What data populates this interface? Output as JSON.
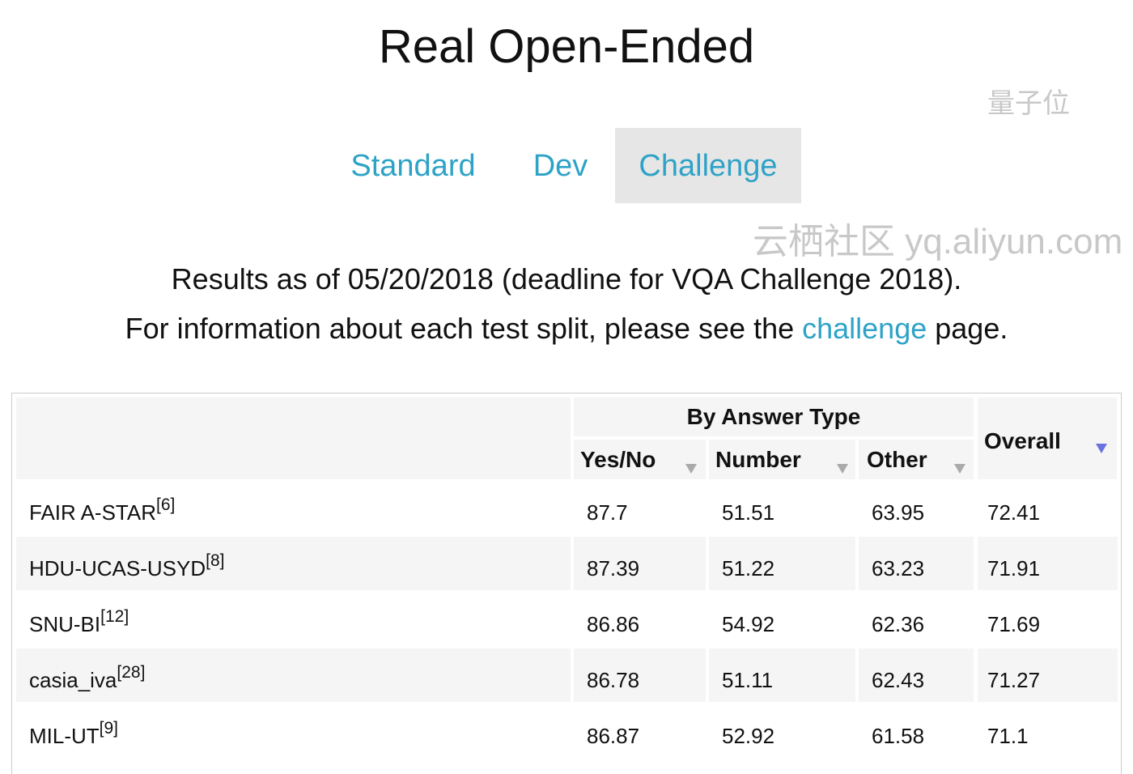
{
  "title": "Real Open-Ended",
  "tabs": [
    {
      "label": "Standard",
      "active": false
    },
    {
      "label": "Dev",
      "active": false
    },
    {
      "label": "Challenge",
      "active": true
    }
  ],
  "info": {
    "line1": "Results as of 05/20/2018 (deadline for VQA Challenge 2018).",
    "line2_pre": "For information about each test split, please see the ",
    "line2_link": "challenge",
    "line2_post": " page."
  },
  "table": {
    "group_header": "By Answer Type",
    "columns": [
      "Yes/No",
      "Number",
      "Other",
      "Overall"
    ],
    "sorted_column": "Overall",
    "rows": [
      {
        "team": "FAIR A-STAR",
        "ref": "[6]",
        "yesno": "87.7",
        "number": "51.51",
        "other": "63.95",
        "overall": "72.41"
      },
      {
        "team": "HDU-UCAS-USYD",
        "ref": "[8]",
        "yesno": "87.39",
        "number": "51.22",
        "other": "63.23",
        "overall": "71.91"
      },
      {
        "team": "SNU-BI",
        "ref": "[12]",
        "yesno": "86.86",
        "number": "54.92",
        "other": "62.36",
        "overall": "71.69"
      },
      {
        "team": "casia_iva",
        "ref": "[28]",
        "yesno": "86.78",
        "number": "51.11",
        "other": "62.43",
        "overall": "71.27"
      },
      {
        "team": "MIL-UT",
        "ref": "[9]",
        "yesno": "86.87",
        "number": "52.92",
        "other": "61.58",
        "overall": "71.1"
      }
    ]
  },
  "watermarks": {
    "wechat": "量子位",
    "site": "云栖社区 yq.aliyun.com"
  },
  "colors": {
    "link": "#2ea3c7",
    "active_tab_bg": "#e6e6e6",
    "sort_active": "#6b73e0"
  }
}
